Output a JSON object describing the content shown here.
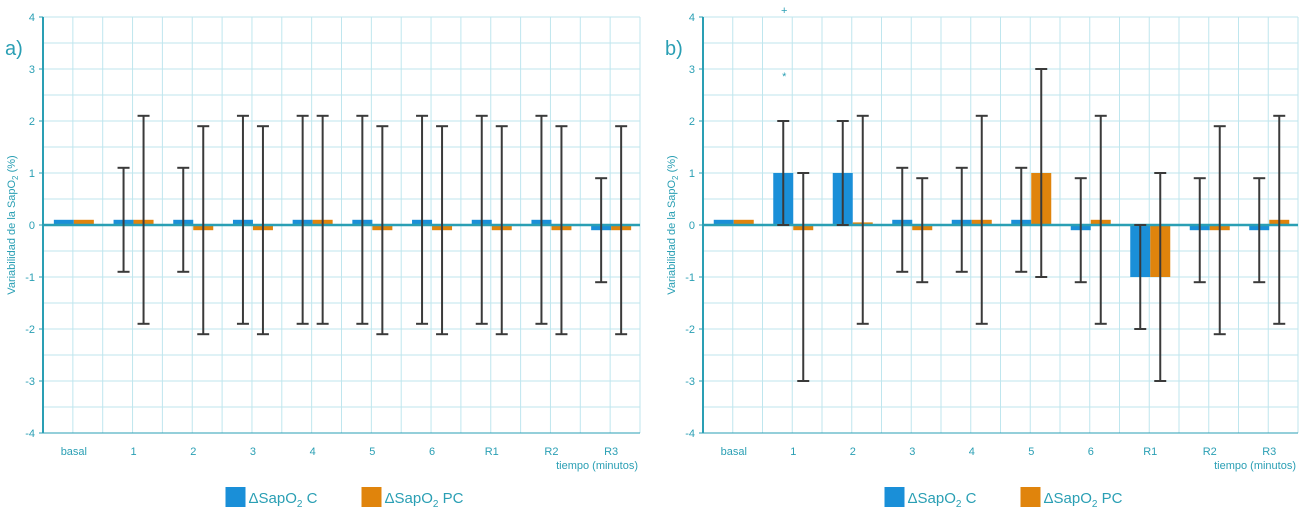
{
  "chart_data": [
    {
      "type": "bar",
      "panel_label": "a)",
      "ylabel": "Variabilidad de la SapO",
      "ylabel_sub": "2",
      "ylabel_suffix": " (%)",
      "xlabel": "tiempo (minutos)",
      "ylim": [
        -4,
        4
      ],
      "yticks": [
        -4,
        -3,
        -2,
        -1,
        0,
        1,
        2,
        3,
        4
      ],
      "categories": [
        "basal",
        "1",
        "2",
        "3",
        "4",
        "5",
        "6",
        "R1",
        "R2",
        "R3"
      ],
      "series": [
        {
          "name": "ΔSapO₂ C",
          "color": "#1a8fd8",
          "values": [
            0.1,
            0.1,
            0.1,
            0.1,
            0.1,
            0.1,
            0.1,
            0.1,
            0.1,
            -0.1
          ],
          "err_low": [
            0.1,
            -0.9,
            -0.9,
            -1.9,
            -1.9,
            -1.9,
            -1.9,
            -1.9,
            -1.9,
            -1.1
          ],
          "err_high": [
            0.1,
            1.1,
            1.1,
            2.1,
            2.1,
            2.1,
            2.1,
            2.1,
            2.1,
            0.9
          ]
        },
        {
          "name": "ΔSapO₂ PC",
          "color": "#e0840c",
          "values": [
            0.1,
            0.1,
            -0.1,
            -0.1,
            0.1,
            -0.1,
            -0.1,
            -0.1,
            -0.1,
            -0.1
          ],
          "err_low": [
            0.1,
            -1.9,
            -2.1,
            -2.1,
            -1.9,
            -2.1,
            -2.1,
            -2.1,
            -2.1,
            -2.1
          ],
          "err_high": [
            0.1,
            2.1,
            1.9,
            1.9,
            2.1,
            1.9,
            1.9,
            1.9,
            1.9,
            1.9
          ]
        }
      ],
      "annotations": [],
      "grid": true,
      "legend": "bottom"
    },
    {
      "type": "bar",
      "panel_label": "b)",
      "ylabel": "Variabilidad de la SapO",
      "ylabel_sub": "2",
      "ylabel_suffix": " (%)",
      "xlabel": "tiempo (minutos)",
      "ylim": [
        -4,
        4
      ],
      "yticks": [
        -4,
        -3,
        -2,
        -1,
        0,
        1,
        2,
        3,
        4
      ],
      "categories": [
        "basal",
        "1",
        "2",
        "3",
        "4",
        "5",
        "6",
        "R1",
        "R2",
        "R3"
      ],
      "series": [
        {
          "name": "ΔSapO₂ C",
          "color": "#1a8fd8",
          "values": [
            0.1,
            1,
            1,
            0.1,
            0.1,
            0.1,
            -0.1,
            -1,
            -0.1,
            -0.1
          ],
          "err_low": [
            0.1,
            0,
            0,
            -0.9,
            -0.9,
            -0.9,
            -1.1,
            -2,
            -1.1,
            -1.1
          ],
          "err_high": [
            0.1,
            2,
            2,
            1.1,
            1.1,
            1.1,
            0.9,
            0,
            0.9,
            0.9
          ]
        },
        {
          "name": "ΔSapO₂ PC",
          "color": "#e0840c",
          "values": [
            0.1,
            -0.1,
            0.05,
            -0.1,
            0.1,
            1,
            0.1,
            -1,
            -0.1,
            0.1
          ],
          "err_low": [
            0.1,
            -3,
            -1.9,
            -1.1,
            -1.9,
            -1,
            -1.9,
            -3,
            -2.1,
            -1.9
          ],
          "err_high": [
            0.1,
            1,
            2.1,
            0.9,
            2.1,
            3,
            2.1,
            1,
            1.9,
            2.1
          ]
        }
      ],
      "annotations": [
        {
          "text": "+",
          "category": "1"
        },
        {
          "text": "*",
          "category": "1"
        }
      ],
      "grid": true,
      "legend": "bottom"
    }
  ],
  "legend": {
    "c_label": "ΔSapO",
    "c_sub": "2",
    "c_suffix": " C",
    "pc_label": "ΔSapO",
    "pc_sub": "2",
    "pc_suffix": " PC"
  },
  "colors": {
    "grid": "#bfe6ee",
    "axis": "#2a9fb4",
    "error": "#3a3a3a",
    "zero": "#2a9fb4"
  }
}
